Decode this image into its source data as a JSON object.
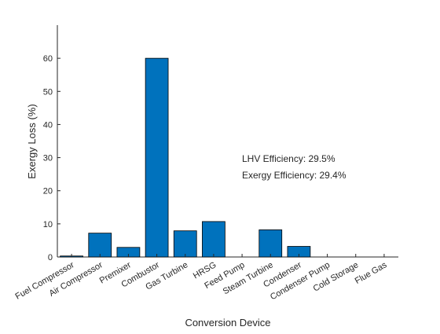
{
  "chart_data": {
    "type": "bar",
    "xlabel": "Conversion Device",
    "ylabel": "Exergy Loss (%)",
    "categories": [
      "Fuel Compressor",
      "Air Compressor",
      "Premixer",
      "Combustor",
      "Gas Turbine",
      "HRSG",
      "Feed Pump",
      "Steam Turbine",
      "Condenser",
      "Condenser Pump",
      "Cold Storage",
      "Flue Gas"
    ],
    "values": [
      0.3,
      7.2,
      2.9,
      60.0,
      7.9,
      10.7,
      0.0,
      8.2,
      3.2,
      0.0,
      0.0,
      0.0
    ],
    "ylim": [
      0,
      70
    ],
    "yticks": [
      0,
      10,
      20,
      30,
      40,
      50,
      60
    ],
    "annotations": [
      "LHV Efficiency: 29.5%",
      "Exergy Efficiency: 29.4%"
    ],
    "bar_color": "#0072BD",
    "grid": false,
    "legend": "none"
  }
}
